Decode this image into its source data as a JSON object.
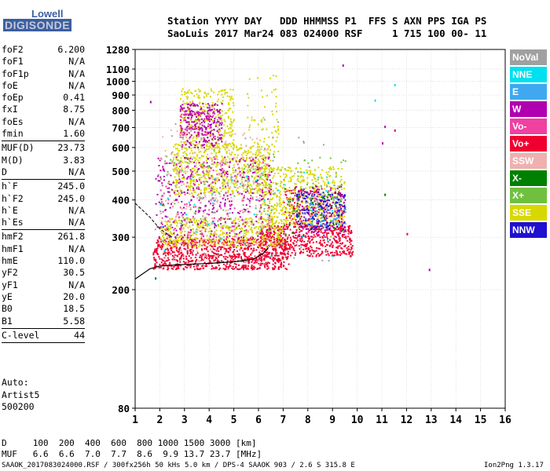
{
  "logo": {
    "top": "Lowell",
    "bottom": "DIGISONDE"
  },
  "header": {
    "line1": "Station YYYY DAY   DDD HHMMSS P1  FFS S AXN PPS IGA PS",
    "line2": "SaoLuis 2017 Mar24 083 024000 RSF     1 715 100 00- 11"
  },
  "params": [
    {
      "label": "foF2",
      "value": "6.200"
    },
    {
      "label": "foF1",
      "value": "N/A"
    },
    {
      "label": "foF1p",
      "value": "N/A"
    },
    {
      "label": "foE",
      "value": "N/A"
    },
    {
      "label": "foEp",
      "value": "0.41"
    },
    {
      "label": "fxI",
      "value": "8.75"
    },
    {
      "label": "foEs",
      "value": "N/A"
    },
    {
      "label": "fmin",
      "value": "1.60"
    },
    {
      "sep": true
    },
    {
      "label": "MUF(D)",
      "value": "23.73"
    },
    {
      "label": "M(D)",
      "value": "3.83"
    },
    {
      "label": "D",
      "value": "N/A"
    },
    {
      "sep": true
    },
    {
      "label": "h`F",
      "value": "245.0"
    },
    {
      "label": "h`F2",
      "value": "245.0"
    },
    {
      "label": "h`E",
      "value": "N/A"
    },
    {
      "label": "h`Es",
      "value": "N/A"
    },
    {
      "sep": true
    },
    {
      "label": "hmF2",
      "value": "261.8"
    },
    {
      "label": "hmF1",
      "value": "N/A"
    },
    {
      "label": "hmE",
      "value": "110.0"
    },
    {
      "label": "yF2",
      "value": "30.5"
    },
    {
      "label": "yF1",
      "value": "N/A"
    },
    {
      "label": "yE",
      "value": "20.0"
    },
    {
      "label": "B0",
      "value": "18.5"
    },
    {
      "label": "B1",
      "value": "5.58"
    },
    {
      "sep": true
    },
    {
      "label": "C-level",
      "value": "44"
    },
    {
      "sep": true
    }
  ],
  "auto": {
    "line1": "Auto:",
    "line2": "Artist5",
    "line3": "500200"
  },
  "legend": [
    {
      "label": "NoVal",
      "color": "#a0a0a0"
    },
    {
      "label": "NNE",
      "color": "#00e0f0"
    },
    {
      "label": "E",
      "color": "#40a8f0"
    },
    {
      "label": "W",
      "color": "#b000b0"
    },
    {
      "label": "Vo-",
      "color": "#f040a0"
    },
    {
      "label": "Vo+",
      "color": "#f00030"
    },
    {
      "label": "SSW",
      "color": "#f0b0b0"
    },
    {
      "label": "X-",
      "color": "#008000"
    },
    {
      "label": "X+",
      "color": "#70c040"
    },
    {
      "label": "SSE",
      "color": "#d8d800"
    },
    {
      "label": "NNW",
      "color": "#2010d0"
    }
  ],
  "footer": {
    "dline": "D     100  200  400  600  800 1000 1500 3000 [km]",
    "mufline": "MUF   6.6  6.6  7.0  7.7  8.6  9.9 13.7 23.7 [MHz]",
    "fileline": "SAAOK_2017083024000.RSF / 300fx256h 50 kHs 5.0 km / DPS-4 SAAOK 903 / 2.6 S 315.8 E",
    "version": "Ion2Png 1.3.17"
  },
  "chart_data": {
    "type": "scatter",
    "x_label_units": "MHz",
    "y_label_units": "km",
    "xlim": [
      1,
      16
    ],
    "ylim": [
      80,
      1280
    ],
    "y_scale": "log",
    "x_ticks": [
      1,
      2,
      3,
      4,
      5,
      6,
      7,
      8,
      9,
      10,
      11,
      12,
      13,
      14,
      15,
      16
    ],
    "y_ticks": [
      80,
      200,
      300,
      400,
      500,
      600,
      700,
      800,
      900,
      1000,
      1100,
      1280
    ],
    "grid": true,
    "legend_position": "right",
    "series": [
      {
        "name": "Vo+",
        "color": "#f00030",
        "regions": [
          {
            "f": [
              1.7,
              7.2
            ],
            "h": [
              235,
              300
            ],
            "n": 900
          },
          {
            "f": [
              6.0,
              9.8
            ],
            "h": [
              260,
              330
            ],
            "n": 500
          },
          {
            "f": [
              7.0,
              9.4
            ],
            "h": [
              320,
              440
            ],
            "n": 200
          }
        ]
      },
      {
        "name": "SSE",
        "color": "#d8d800",
        "regions": [
          {
            "f": [
              2.0,
              7.0
            ],
            "h": [
              280,
              350
            ],
            "n": 500
          },
          {
            "f": [
              2.5,
              6.5
            ],
            "h": [
              420,
              620
            ],
            "n": 600
          },
          {
            "f": [
              2.8,
              5.0
            ],
            "h": [
              600,
              950
            ],
            "n": 300
          },
          {
            "f": [
              6.0,
              9.5
            ],
            "h": [
              330,
              520
            ],
            "n": 500
          },
          {
            "f": [
              5.5,
              6.8
            ],
            "h": [
              500,
              1060
            ],
            "n": 80
          }
        ]
      },
      {
        "name": "W",
        "color": "#b000b0",
        "regions": [
          {
            "f": [
              2.8,
              4.5
            ],
            "h": [
              600,
              850
            ],
            "n": 250
          },
          {
            "f": [
              1.8,
              6.5
            ],
            "h": [
              300,
              560
            ],
            "n": 350
          },
          {
            "f": [
              7.5,
              9.5
            ],
            "h": [
              300,
              450
            ],
            "n": 150
          }
        ]
      },
      {
        "name": "Vo-",
        "color": "#f040a0",
        "regions": [
          {
            "f": [
              2.0,
              6.5
            ],
            "h": [
              280,
              560
            ],
            "n": 200
          },
          {
            "f": [
              2.8,
              4.4
            ],
            "h": [
              650,
              820
            ],
            "n": 60
          }
        ]
      },
      {
        "name": "NNW",
        "color": "#2010d0",
        "regions": [
          {
            "f": [
              7.5,
              9.5
            ],
            "h": [
              320,
              430
            ],
            "n": 150
          }
        ]
      },
      {
        "name": "X+",
        "color": "#70c040",
        "regions": [
          {
            "f": [
              2.0,
              9.5
            ],
            "h": [
              300,
              600
            ],
            "n": 150
          }
        ]
      },
      {
        "name": "SSW",
        "color": "#f0b0b0",
        "regions": [
          {
            "f": [
              2.0,
              6.5
            ],
            "h": [
              250,
              700
            ],
            "n": 250
          }
        ]
      },
      {
        "name": "NNE",
        "color": "#00e0f0",
        "regions": [
          {
            "f": [
              2.0,
              9.0
            ],
            "h": [
              260,
              500
            ],
            "n": 60
          }
        ]
      },
      {
        "name": "E",
        "color": "#40a8f0",
        "regions": [
          {
            "f": [
              7.5,
              9.5
            ],
            "h": [
              330,
              420
            ],
            "n": 60
          }
        ]
      },
      {
        "name": "X-",
        "color": "#008000",
        "regions": [
          {
            "f": [
              7.0,
              9.5
            ],
            "h": [
              300,
              450
            ],
            "n": 40
          }
        ]
      },
      {
        "name": "NoVal",
        "color": "#a0a0a0",
        "regions": [
          {
            "f": [
              1.7,
              9.0
            ],
            "h": [
              250,
              800
            ],
            "n": 60
          }
        ]
      }
    ],
    "outliers": [
      {
        "f": 9.4,
        "h": 1140,
        "color": "#b000b0"
      },
      {
        "f": 11.0,
        "h": 625,
        "color": "#b000b0"
      },
      {
        "f": 11.1,
        "h": 710,
        "color": "#b000b0"
      },
      {
        "f": 11.5,
        "h": 690,
        "color": "#f00030"
      },
      {
        "f": 12.9,
        "h": 235,
        "color": "#b000b0"
      },
      {
        "f": 12.0,
        "h": 310,
        "color": "#f00030"
      },
      {
        "f": 11.1,
        "h": 420,
        "color": "#008000"
      },
      {
        "f": 11.5,
        "h": 980,
        "color": "#00e0f0"
      },
      {
        "f": 10.7,
        "h": 870,
        "color": "#00e0f0"
      },
      {
        "f": 1.6,
        "h": 860,
        "color": "#b000b0"
      },
      {
        "f": 1.8,
        "h": 220,
        "color": "#008000"
      }
    ],
    "trace": [
      [
        1.0,
        217
      ],
      [
        1.6,
        235
      ],
      [
        2.0,
        240
      ],
      [
        3.0,
        243
      ],
      [
        4.0,
        245
      ],
      [
        5.0,
        248
      ],
      [
        5.8,
        253
      ],
      [
        6.2,
        265
      ],
      [
        6.4,
        277
      ]
    ],
    "trace_upper": [
      [
        1.0,
        390
      ],
      [
        1.6,
        350
      ],
      [
        2.0,
        320
      ],
      [
        2.5,
        300
      ]
    ]
  }
}
